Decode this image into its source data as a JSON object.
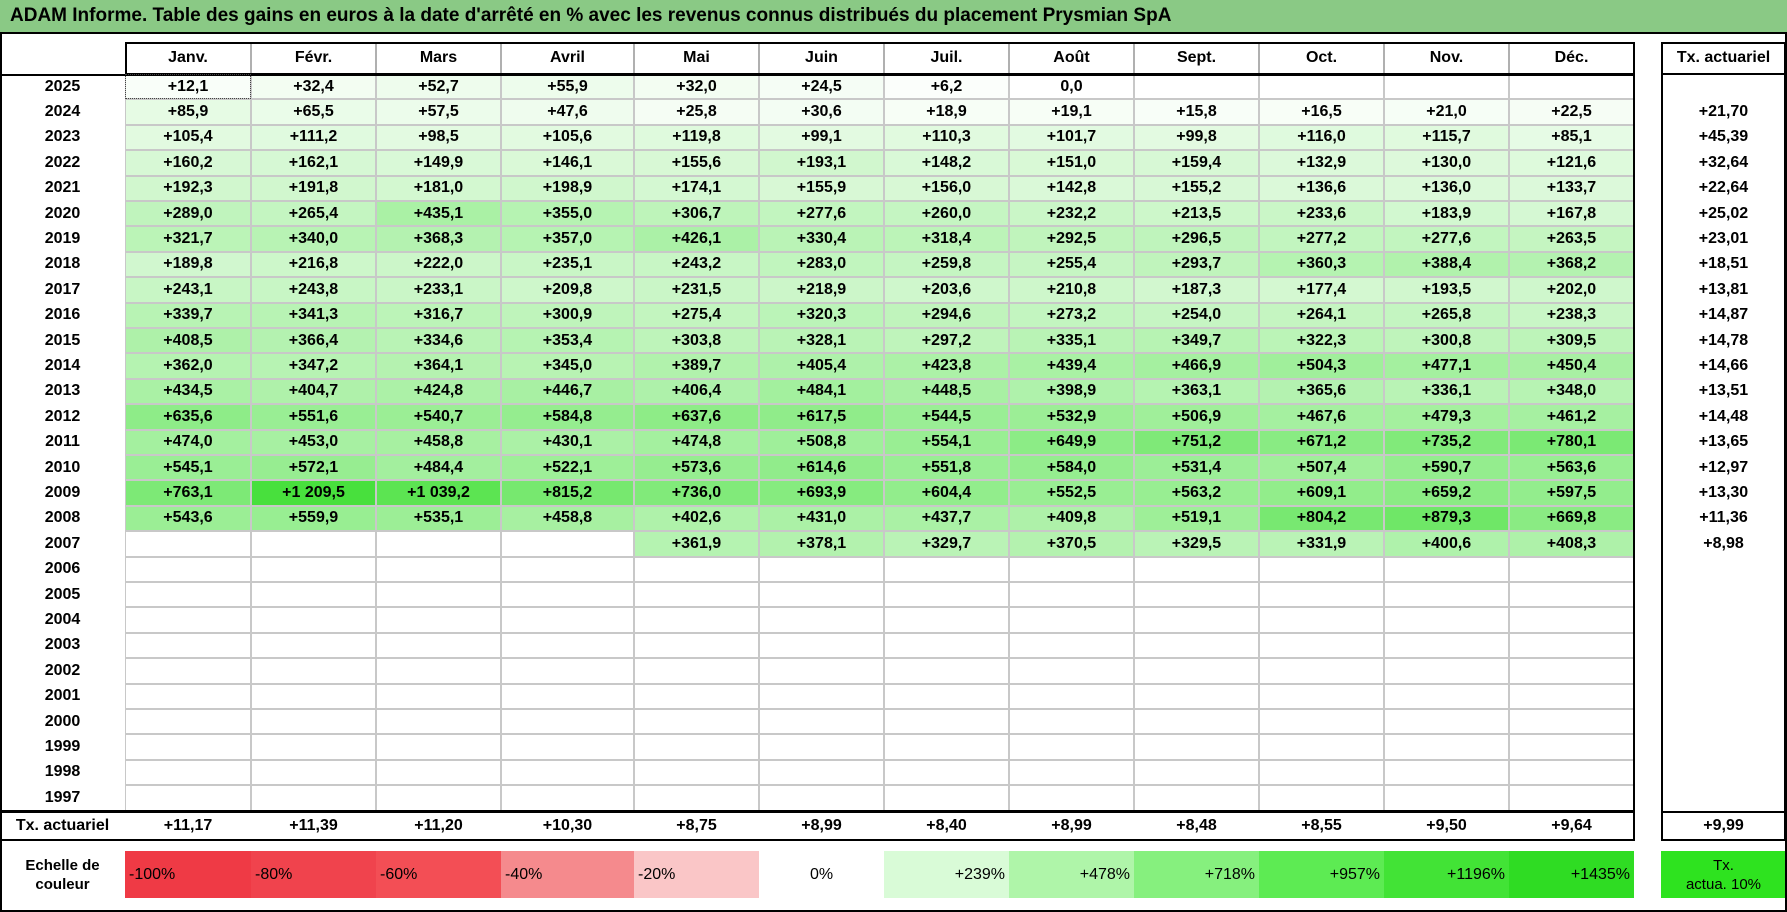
{
  "title": "ADAM Informe. Table des gains en euros à la date d'arrêté en % avec les revenus connus distribués du placement Prysmian SpA",
  "months": [
    "Janv.",
    "Févr.",
    "Mars",
    "Avril",
    "Mai",
    "Juin",
    "Juil.",
    "Août",
    "Sept.",
    "Oct.",
    "Nov.",
    "Déc."
  ],
  "ta_header": "Tx. actuariel",
  "rows": [
    {
      "year": "2025",
      "values": [
        "+12,1",
        "+32,4",
        "+52,7",
        "+55,9",
        "+32,0",
        "+24,5",
        "+6,2",
        "0,0",
        "",
        "",
        "",
        ""
      ],
      "ta": ""
    },
    {
      "year": "2024",
      "values": [
        "+85,9",
        "+65,5",
        "+57,5",
        "+47,6",
        "+25,8",
        "+30,6",
        "+18,9",
        "+19,1",
        "+15,8",
        "+16,5",
        "+21,0",
        "+22,5"
      ],
      "ta": "+21,70"
    },
    {
      "year": "2023",
      "values": [
        "+105,4",
        "+111,2",
        "+98,5",
        "+105,6",
        "+119,8",
        "+99,1",
        "+110,3",
        "+101,7",
        "+99,8",
        "+116,0",
        "+115,7",
        "+85,1"
      ],
      "ta": "+45,39"
    },
    {
      "year": "2022",
      "values": [
        "+160,2",
        "+162,1",
        "+149,9",
        "+146,1",
        "+155,6",
        "+193,1",
        "+148,2",
        "+151,0",
        "+159,4",
        "+132,9",
        "+130,0",
        "+121,6"
      ],
      "ta": "+32,64"
    },
    {
      "year": "2021",
      "values": [
        "+192,3",
        "+191,8",
        "+181,0",
        "+198,9",
        "+174,1",
        "+155,9",
        "+156,0",
        "+142,8",
        "+155,2",
        "+136,6",
        "+136,0",
        "+133,7"
      ],
      "ta": "+22,64"
    },
    {
      "year": "2020",
      "values": [
        "+289,0",
        "+265,4",
        "+435,1",
        "+355,0",
        "+306,7",
        "+277,6",
        "+260,0",
        "+232,2",
        "+213,5",
        "+233,6",
        "+183,9",
        "+167,8"
      ],
      "ta": "+25,02"
    },
    {
      "year": "2019",
      "values": [
        "+321,7",
        "+340,0",
        "+368,3",
        "+357,0",
        "+426,1",
        "+330,4",
        "+318,4",
        "+292,5",
        "+296,5",
        "+277,2",
        "+277,6",
        "+263,5"
      ],
      "ta": "+23,01"
    },
    {
      "year": "2018",
      "values": [
        "+189,8",
        "+216,8",
        "+222,0",
        "+235,1",
        "+243,2",
        "+283,0",
        "+259,8",
        "+255,4",
        "+293,7",
        "+360,3",
        "+388,4",
        "+368,2"
      ],
      "ta": "+18,51"
    },
    {
      "year": "2017",
      "values": [
        "+243,1",
        "+243,8",
        "+233,1",
        "+209,8",
        "+231,5",
        "+218,9",
        "+203,6",
        "+210,8",
        "+187,3",
        "+177,4",
        "+193,5",
        "+202,0"
      ],
      "ta": "+13,81"
    },
    {
      "year": "2016",
      "values": [
        "+339,7",
        "+341,3",
        "+316,7",
        "+300,9",
        "+275,4",
        "+320,3",
        "+294,6",
        "+273,2",
        "+254,0",
        "+264,1",
        "+265,8",
        "+238,3"
      ],
      "ta": "+14,87"
    },
    {
      "year": "2015",
      "values": [
        "+408,5",
        "+366,4",
        "+334,6",
        "+353,4",
        "+303,8",
        "+328,1",
        "+297,2",
        "+335,1",
        "+349,7",
        "+322,3",
        "+300,8",
        "+309,5"
      ],
      "ta": "+14,78"
    },
    {
      "year": "2014",
      "values": [
        "+362,0",
        "+347,2",
        "+364,1",
        "+345,0",
        "+389,7",
        "+405,4",
        "+423,8",
        "+439,4",
        "+466,9",
        "+504,3",
        "+477,1",
        "+450,4"
      ],
      "ta": "+14,66"
    },
    {
      "year": "2013",
      "values": [
        "+434,5",
        "+404,7",
        "+424,8",
        "+446,7",
        "+406,4",
        "+484,1",
        "+448,5",
        "+398,9",
        "+363,1",
        "+365,6",
        "+336,1",
        "+348,0"
      ],
      "ta": "+13,51"
    },
    {
      "year": "2012",
      "values": [
        "+635,6",
        "+551,6",
        "+540,7",
        "+584,8",
        "+637,6",
        "+617,5",
        "+544,5",
        "+532,9",
        "+506,9",
        "+467,6",
        "+479,3",
        "+461,2"
      ],
      "ta": "+14,48"
    },
    {
      "year": "2011",
      "values": [
        "+474,0",
        "+453,0",
        "+458,8",
        "+430,1",
        "+474,8",
        "+508,8",
        "+554,1",
        "+649,9",
        "+751,2",
        "+671,2",
        "+735,2",
        "+780,1"
      ],
      "ta": "+13,65"
    },
    {
      "year": "2010",
      "values": [
        "+545,1",
        "+572,1",
        "+484,4",
        "+522,1",
        "+573,6",
        "+614,6",
        "+551,8",
        "+584,0",
        "+531,4",
        "+507,4",
        "+590,7",
        "+563,6"
      ],
      "ta": "+12,97"
    },
    {
      "year": "2009",
      "values": [
        "+763,1",
        "+1 209,5",
        "+1 039,2",
        "+815,2",
        "+736,0",
        "+693,9",
        "+604,4",
        "+552,5",
        "+563,2",
        "+609,1",
        "+659,2",
        "+597,5"
      ],
      "ta": "+13,30"
    },
    {
      "year": "2008",
      "values": [
        "+543,6",
        "+559,9",
        "+535,1",
        "+458,8",
        "+402,6",
        "+431,0",
        "+437,7",
        "+409,8",
        "+519,1",
        "+804,2",
        "+879,3",
        "+669,8"
      ],
      "ta": "+11,36"
    },
    {
      "year": "2007",
      "values": [
        "",
        "",
        "",
        "",
        "+361,9",
        "+378,1",
        "+329,7",
        "+370,5",
        "+329,5",
        "+331,9",
        "+400,6",
        "+408,3"
      ],
      "ta": "+8,98"
    },
    {
      "year": "2006",
      "values": [
        "",
        "",
        "",
        "",
        "",
        "",
        "",
        "",
        "",
        "",
        "",
        ""
      ],
      "ta": ""
    },
    {
      "year": "2005",
      "values": [
        "",
        "",
        "",
        "",
        "",
        "",
        "",
        "",
        "",
        "",
        "",
        ""
      ],
      "ta": ""
    },
    {
      "year": "2004",
      "values": [
        "",
        "",
        "",
        "",
        "",
        "",
        "",
        "",
        "",
        "",
        "",
        ""
      ],
      "ta": ""
    },
    {
      "year": "2003",
      "values": [
        "",
        "",
        "",
        "",
        "",
        "",
        "",
        "",
        "",
        "",
        "",
        ""
      ],
      "ta": ""
    },
    {
      "year": "2002",
      "values": [
        "",
        "",
        "",
        "",
        "",
        "",
        "",
        "",
        "",
        "",
        "",
        ""
      ],
      "ta": ""
    },
    {
      "year": "2001",
      "values": [
        "",
        "",
        "",
        "",
        "",
        "",
        "",
        "",
        "",
        "",
        "",
        ""
      ],
      "ta": ""
    },
    {
      "year": "2000",
      "values": [
        "",
        "",
        "",
        "",
        "",
        "",
        "",
        "",
        "",
        "",
        "",
        ""
      ],
      "ta": ""
    },
    {
      "year": "1999",
      "values": [
        "",
        "",
        "",
        "",
        "",
        "",
        "",
        "",
        "",
        "",
        "",
        ""
      ],
      "ta": ""
    },
    {
      "year": "1998",
      "values": [
        "",
        "",
        "",
        "",
        "",
        "",
        "",
        "",
        "",
        "",
        "",
        ""
      ],
      "ta": ""
    },
    {
      "year": "1997",
      "values": [
        "",
        "",
        "",
        "",
        "",
        "",
        "",
        "",
        "",
        "",
        "",
        ""
      ],
      "ta": ""
    }
  ],
  "footer": {
    "label": "Tx. actuariel",
    "values": [
      "+11,17",
      "+11,39",
      "+11,20",
      "+10,30",
      "+8,75",
      "+8,99",
      "+8,40",
      "+8,99",
      "+8,48",
      "+8,55",
      "+9,50",
      "+9,64"
    ],
    "ta": "+9,99"
  },
  "legend": {
    "label_line1": "Echelle de",
    "label_line2": "couleur",
    "cells": [
      {
        "text": "-100%",
        "color": "#ef3a45",
        "align": "left"
      },
      {
        "text": "-80%",
        "color": "#f0434d",
        "align": "left"
      },
      {
        "text": "-60%",
        "color": "#f34e55",
        "align": "left"
      },
      {
        "text": "-40%",
        "color": "#f58a8d",
        "align": "left"
      },
      {
        "text": "-20%",
        "color": "#fac6c7",
        "align": "left"
      },
      {
        "text": "0%",
        "color": "#ffffff",
        "align": "center"
      },
      {
        "text": "+239%",
        "color": "#d9fbd7",
        "align": "right"
      },
      {
        "text": "+478%",
        "color": "#aff5a9",
        "align": "right"
      },
      {
        "text": "+718%",
        "color": "#86f07e",
        "align": "right"
      },
      {
        "text": "+957%",
        "color": "#5deb53",
        "align": "right"
      },
      {
        "text": "+1196%",
        "color": "#42e336",
        "align": "right"
      },
      {
        "text": "+1435%",
        "color": "#2fdc23",
        "align": "right"
      }
    ],
    "ta_line1": "Tx.",
    "ta_line2": "actua. 10%",
    "ta_color": "#2ee31f"
  },
  "colors": {
    "title_bg": "#8ac985",
    "scale_low": "#ffffff",
    "scale_high": "#2fdc23"
  }
}
